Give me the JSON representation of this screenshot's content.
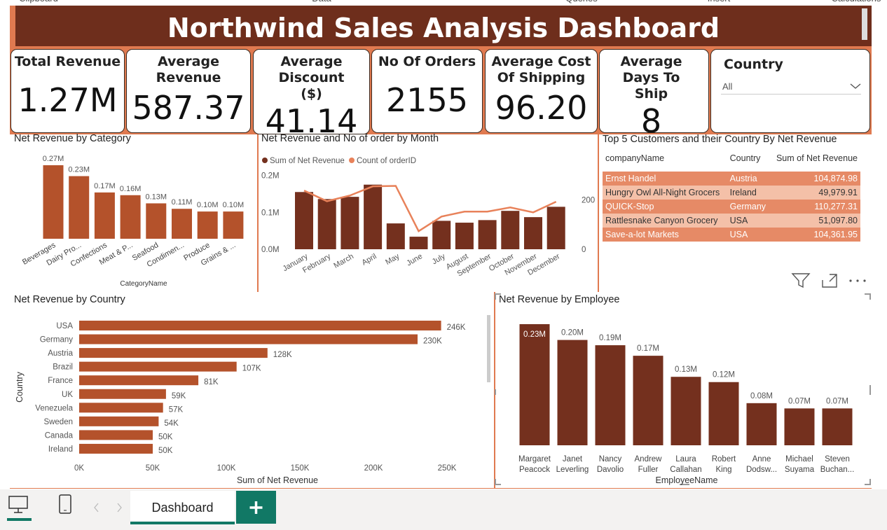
{
  "ribbon": [
    "Clipboard",
    "Data",
    "Queries",
    "Insert",
    "Calculations"
  ],
  "title": "Northwind Sales Analysis Dashboard",
  "cards": [
    {
      "label": "Total Revenue",
      "value": "1.27M"
    },
    {
      "label": "Average Revenue",
      "value": "587.37"
    },
    {
      "label": "Average Discount ($)",
      "value": "41.14"
    },
    {
      "label": "No Of Orders",
      "value": "2155"
    },
    {
      "label": "Average Cost Of Shipping",
      "value": "96.20"
    },
    {
      "label": "Average Days To Ship",
      "value": "8"
    }
  ],
  "filter": {
    "label": "Country",
    "value": "All"
  },
  "chart_data": [
    {
      "type": "bar",
      "title": "Net Revenue by Category",
      "xlabel": "CategoryName",
      "categories": [
        "Beverages",
        "Dairy Pro...",
        "Confections",
        "Meat & P...",
        "Seafood",
        "Condimen...",
        "Produce",
        "Grains & ..."
      ],
      "values": [
        0.27,
        0.23,
        0.17,
        0.16,
        0.13,
        0.11,
        0.1,
        0.1
      ],
      "value_labels": [
        "0.27M",
        "0.23M",
        "0.17M",
        "0.16M",
        "0.13M",
        "0.11M",
        "0.10M",
        "0.10M"
      ],
      "color": "#b4522b"
    },
    {
      "type": "combo",
      "title": "Net Revenue and No of order by Month",
      "categories": [
        "January",
        "February",
        "March",
        "April",
        "May",
        "June",
        "July",
        "August",
        "September",
        "October",
        "November",
        "December"
      ],
      "series": [
        {
          "name": "Sum of Net Revenue",
          "color": "#74301e",
          "kind": "bar",
          "values": [
            0.155,
            0.136,
            0.142,
            0.175,
            0.07,
            0.034,
            0.077,
            0.072,
            0.079,
            0.104,
            0.087,
            0.115
          ]
        },
        {
          "name": "Count of orderID",
          "color": "#e8825a",
          "kind": "line",
          "axis": "y2",
          "values": [
            237,
            194,
            217,
            254,
            256,
            73,
            132,
            152,
            152,
            169,
            149,
            192
          ]
        }
      ],
      "ylim": [
        0,
        0.22
      ],
      "yticks": [
        {
          "value": 0,
          "label": "0.0M"
        },
        {
          "value": 0.1,
          "label": "0.1M"
        },
        {
          "value": 0.2,
          "label": "0.2M"
        }
      ],
      "y2lim": [
        0,
        328
      ],
      "y2ticks": [
        0,
        200
      ]
    },
    {
      "type": "hbar",
      "title": "Net Revenue by Country",
      "xlabel": "Sum of Net Revenue",
      "ylabel": "Country",
      "categories": [
        "USA",
        "Germany",
        "Austria",
        "Brazil",
        "France",
        "UK",
        "Venezuela",
        "Sweden",
        "Canada",
        "Ireland"
      ],
      "values": [
        246,
        230,
        128,
        107,
        81,
        59,
        57,
        54,
        50,
        50
      ],
      "value_labels": [
        "246K",
        "230K",
        "128K",
        "107K",
        "81K",
        "59K",
        "57K",
        "54K",
        "50K",
        "50K"
      ],
      "color": "#b4522b",
      "xlim": [
        0,
        250
      ],
      "xticks": [
        {
          "value": 0,
          "label": "0K"
        },
        {
          "value": 50,
          "label": "50K"
        },
        {
          "value": 100,
          "label": "100K"
        },
        {
          "value": 150,
          "label": "150K"
        },
        {
          "value": 200,
          "label": "200K"
        },
        {
          "value": 250,
          "label": "250K"
        }
      ]
    },
    {
      "type": "bar",
      "title": "Net Revenue by Employee",
      "xlabel": "EmployeeName",
      "categories": [
        "Margaret Peacock",
        "Janet Leverling",
        "Nancy Davolio",
        "Andrew Fuller",
        "Laura Callahan",
        "Robert King",
        "Anne Dodsw...",
        "Michael Suyama",
        "Steven Buchan..."
      ],
      "values": [
        0.23,
        0.2,
        0.19,
        0.17,
        0.13,
        0.12,
        0.08,
        0.07,
        0.07
      ],
      "value_labels": [
        "0.23M",
        "0.20M",
        "0.19M",
        "0.17M",
        "0.13M",
        "0.12M",
        "0.08M",
        "0.07M",
        "0.07M"
      ],
      "color": "#74301e"
    }
  ],
  "table": {
    "title": "Top 5 Customers and their Country By Net Revenue",
    "columns": [
      "companyName",
      "Country",
      "Sum of Net Revenue"
    ],
    "rows": [
      [
        "Ernst Handel",
        "Austria",
        "104,874.98"
      ],
      [
        "Hungry Owl All-Night Grocers",
        "Ireland",
        "49,979.91"
      ],
      [
        "QUICK-Stop",
        "Germany",
        "110,277.31"
      ],
      [
        "Rattlesnake Canyon Grocery",
        "USA",
        "51,097.80"
      ],
      [
        "Save-a-lot Markets",
        "USA",
        "104,361.95"
      ]
    ]
  },
  "tabs": [
    "Dashboard"
  ]
}
